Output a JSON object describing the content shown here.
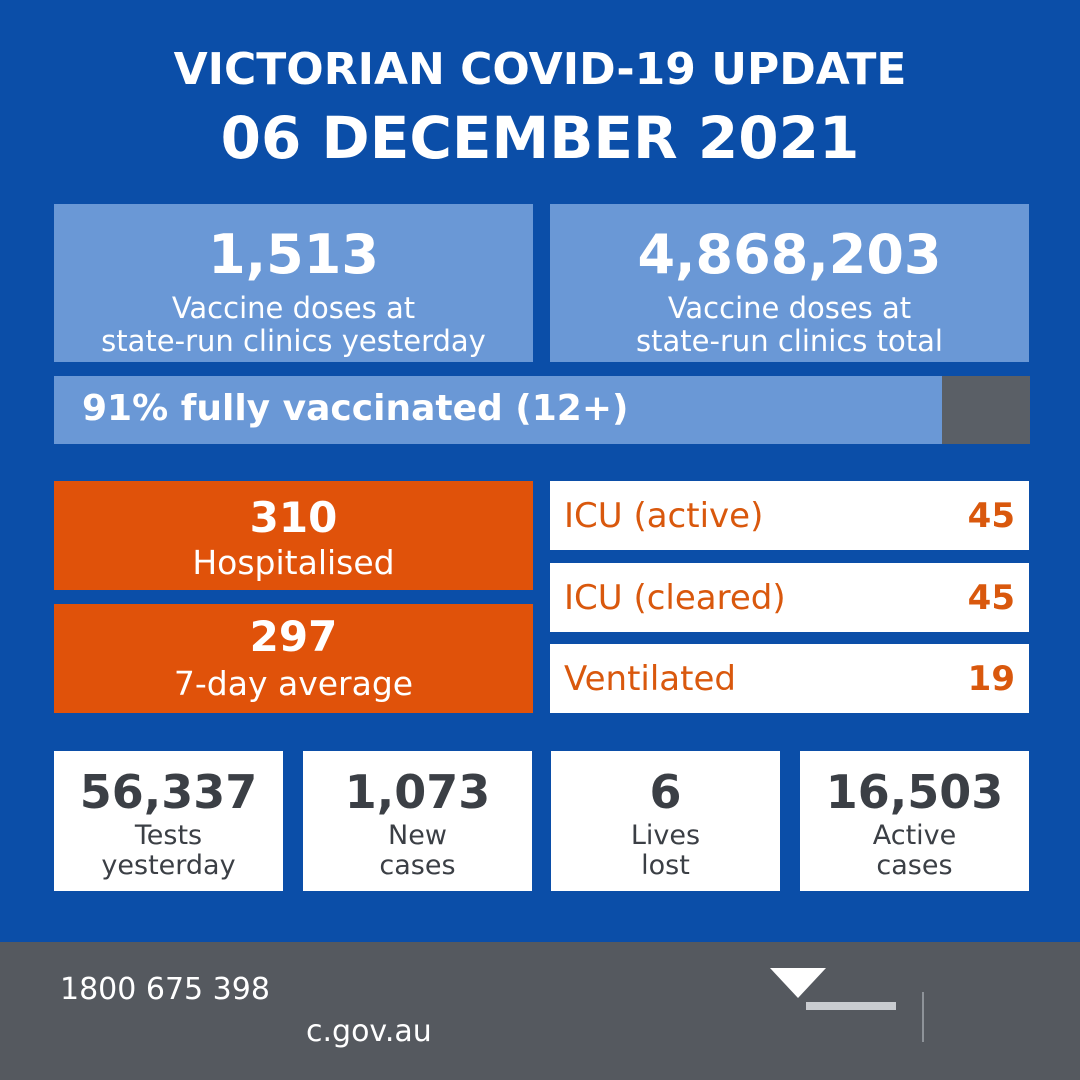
{
  "header": {
    "title": "VICTORIAN COVID-19 UPDATE",
    "date": "06 DECEMBER 2021"
  },
  "vaccines": {
    "yesterday_value": "1,513",
    "yesterday_label_1": "Vaccine doses at",
    "yesterday_label_2": "state-run clinics yesterday",
    "total_value": "4,868,203",
    "total_label_1": "Vaccine doses at",
    "total_label_2": "state-run clinics total",
    "fully_vaccinated_label": "91% fully vaccinated (12+)",
    "fully_vaccinated_fraction": 0.91
  },
  "hospital": {
    "hospitalised_value": "310",
    "hospitalised_label": "Hospitalised",
    "avg_value": "297",
    "avg_label": "7-day average",
    "icu_active_label": "ICU (active)",
    "icu_active_value": "45",
    "icu_cleared_label": "ICU (cleared)",
    "icu_cleared_value": "45",
    "ventilated_label": "Ventilated",
    "ventilated_value": "19"
  },
  "stats": [
    {
      "value": "56,337",
      "label_1": "Tests",
      "label_2": "yesterday"
    },
    {
      "value": "1,073",
      "label_1": "New",
      "label_2": "cases"
    },
    {
      "value": "6",
      "label_1": "Lives",
      "label_2": "lost"
    },
    {
      "value": "16,503",
      "label_1": "Active",
      "label_2": "cases"
    }
  ],
  "footer": {
    "phone": "1800 675 398",
    "website": "c.gov.au"
  },
  "colors": {
    "background": "#0b4ea8",
    "light_blue": "#6a98d6",
    "orange": "#e0520a",
    "dark_grey": "#55595f"
  }
}
